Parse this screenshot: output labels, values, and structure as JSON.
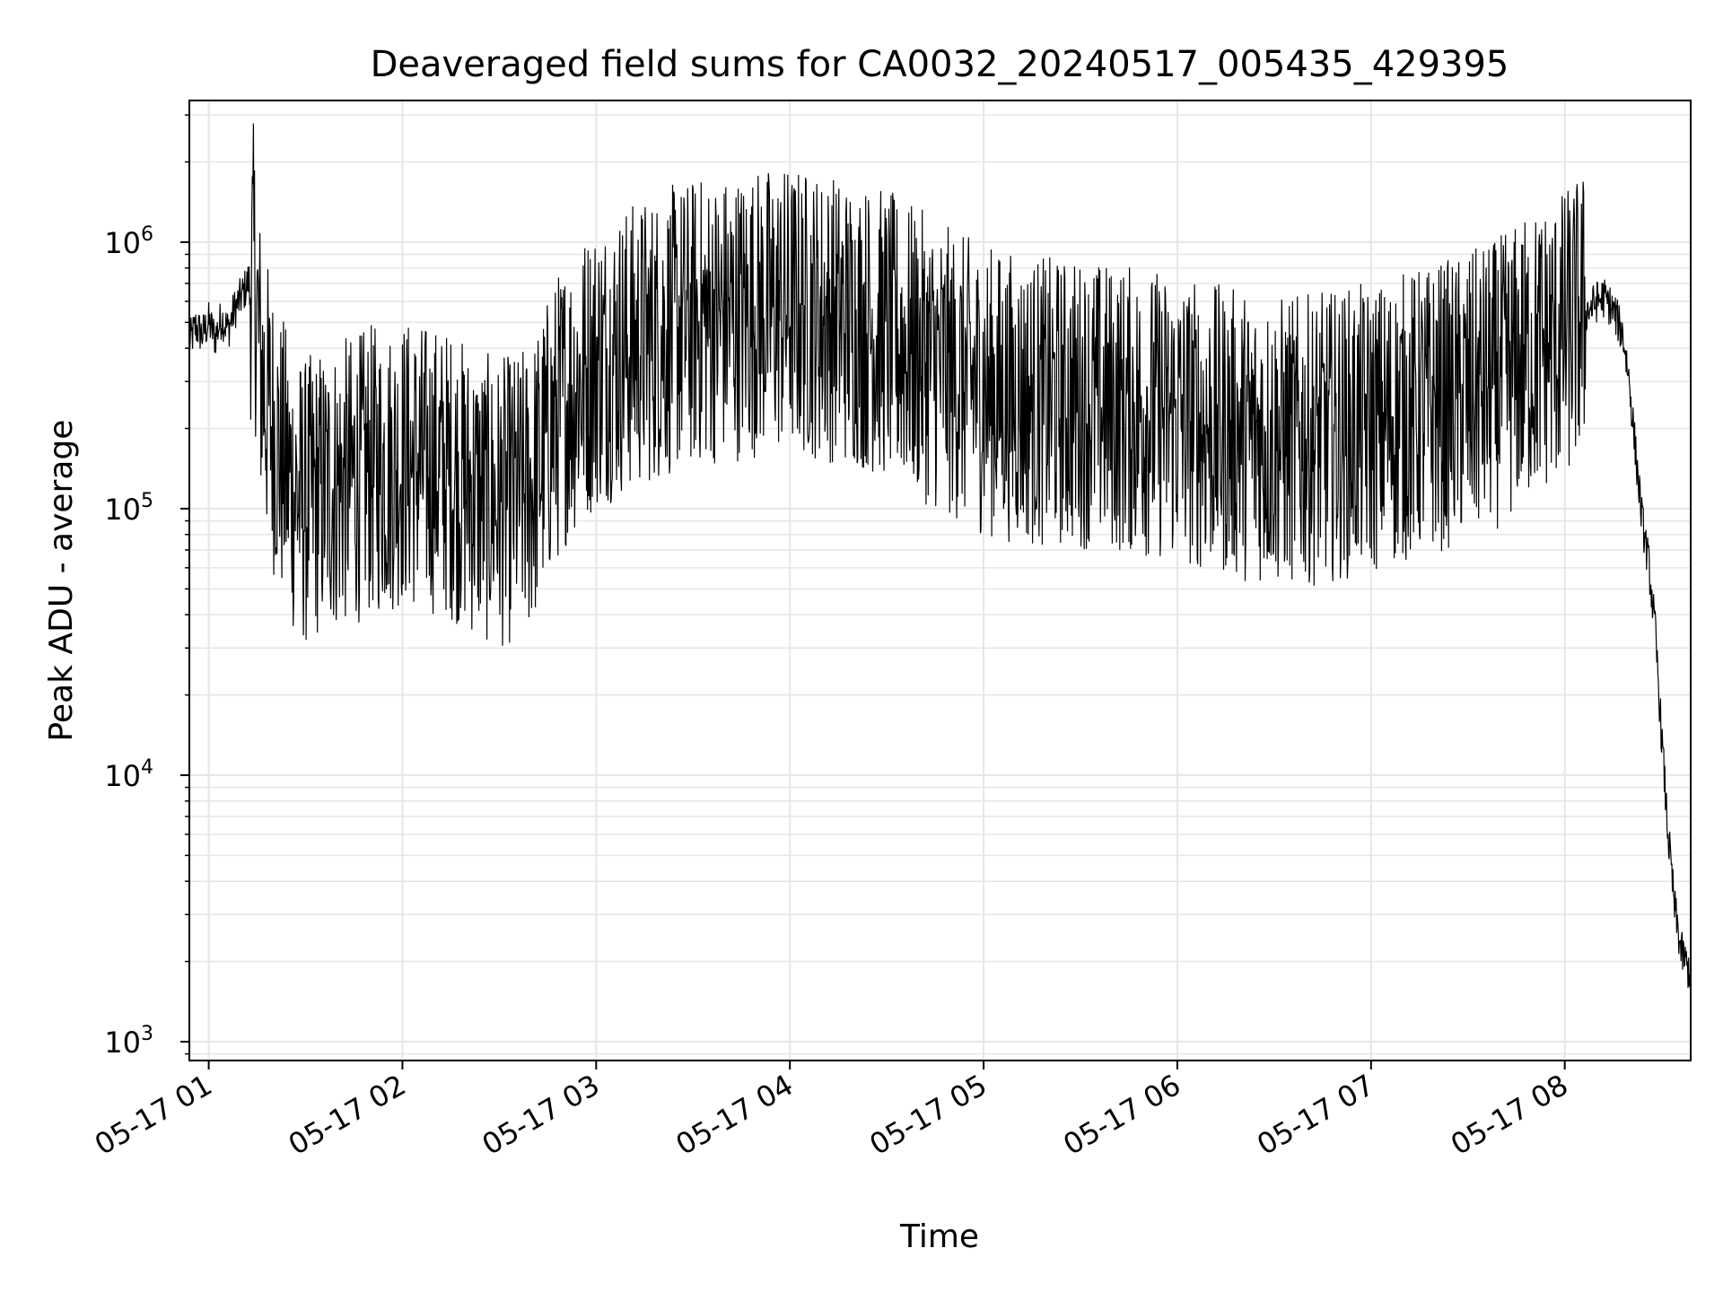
{
  "chart_data": {
    "type": "line",
    "title": "Deaveraged field sums for CA0032_20240517_005435_429395",
    "xlabel": "Time",
    "ylabel": "Peak ADU - average",
    "y_scale": "log",
    "ylim": [
      850,
      3400000
    ],
    "xlim": [
      "2024-05-17T00:54:00",
      "2024-05-17T08:39:00"
    ],
    "grid": true,
    "line_color": "#000000",
    "grid_color": "#e6e6e6",
    "x_ticks": [
      {
        "value": "2024-05-17T01:00:00",
        "label": "05-17 01"
      },
      {
        "value": "2024-05-17T02:00:00",
        "label": "05-17 02"
      },
      {
        "value": "2024-05-17T03:00:00",
        "label": "05-17 03"
      },
      {
        "value": "2024-05-17T04:00:00",
        "label": "05-17 04"
      },
      {
        "value": "2024-05-17T05:00:00",
        "label": "05-17 05"
      },
      {
        "value": "2024-05-17T06:00:00",
        "label": "05-17 06"
      },
      {
        "value": "2024-05-17T07:00:00",
        "label": "05-17 07"
      },
      {
        "value": "2024-05-17T08:00:00",
        "label": "05-17 08"
      }
    ],
    "y_ticks": [
      {
        "value": 1000,
        "base": "10",
        "exp": "3"
      },
      {
        "value": 10000,
        "base": "10",
        "exp": "4"
      },
      {
        "value": 100000,
        "base": "10",
        "exp": "5"
      },
      {
        "value": 1000000,
        "base": "10",
        "exp": "6"
      }
    ],
    "series": [
      {
        "x": [
          "00:54",
          "00:56",
          "00:58",
          "01:00",
          "01:02",
          "01:04",
          "01:06",
          "01:08",
          "01:10",
          "01:12",
          "01:14",
          "01:16",
          "01:18",
          "01:20",
          "01:22",
          "01:24",
          "01:26",
          "01:28",
          "01:30",
          "01:34",
          "01:38",
          "01:42",
          "01:46",
          "01:50",
          "01:55",
          "02:00",
          "02:05",
          "02:10",
          "02:15",
          "02:20",
          "02:25",
          "02:30",
          "02:35",
          "02:40",
          "02:45",
          "02:50",
          "02:55",
          "03:00",
          "03:10",
          "03:20",
          "03:30",
          "03:40",
          "03:50",
          "04:00",
          "04:10",
          "04:20",
          "04:30",
          "04:40",
          "04:50",
          "05:00",
          "05:10",
          "05:20",
          "05:30",
          "05:40",
          "05:50",
          "06:00",
          "06:10",
          "06:20",
          "06:30",
          "06:40",
          "06:50",
          "07:00",
          "07:10",
          "07:20",
          "07:30",
          "07:40",
          "07:50",
          "08:00",
          "08:05",
          "08:10",
          "08:12",
          "08:14",
          "08:16",
          "08:18",
          "08:20",
          "08:22",
          "08:24",
          "08:26",
          "08:28",
          "08:30",
          "08:32",
          "08:34",
          "08:36",
          "08:38",
          "08:39"
        ],
        "y": [
          420000,
          480000,
          450000,
          500000,
          440000,
          520000,
          470000,
          560000,
          620000,
          700000,
          800000,
          350000,
          250000,
          200000,
          160000,
          140000,
          120000,
          110000,
          105000,
          115000,
          120000,
          125000,
          130000,
          140000,
          140000,
          150000,
          145000,
          140000,
          135000,
          120000,
          110000,
          105000,
          110000,
          120000,
          180000,
          250000,
          300000,
          350000,
          400000,
          450000,
          500000,
          520000,
          550000,
          560000,
          530000,
          500000,
          450000,
          380000,
          320000,
          280000,
          260000,
          250000,
          250000,
          240000,
          230000,
          220000,
          200000,
          190000,
          180000,
          180000,
          190000,
          200000,
          220000,
          240000,
          260000,
          300000,
          380000,
          450000,
          520000,
          600000,
          620000,
          580000,
          520000,
          450000,
          300000,
          160000,
          90000,
          62000,
          35000,
          14000,
          6000,
          3200,
          2200,
          1900,
          1800
        ]
      }
    ]
  }
}
